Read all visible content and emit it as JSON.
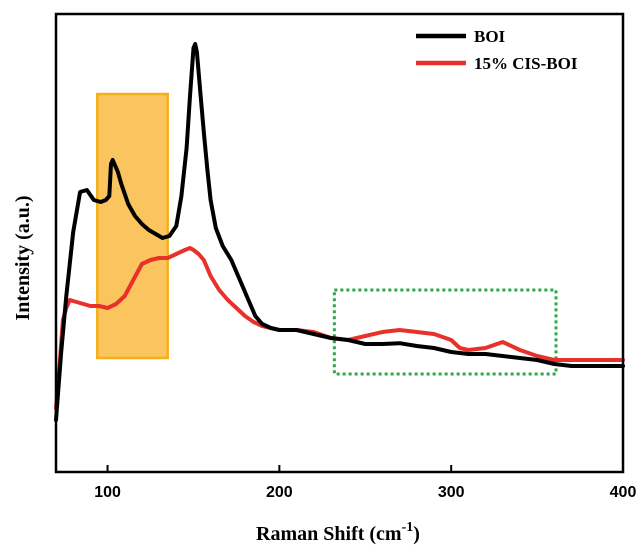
{
  "chart_data": {
    "type": "line",
    "title": "",
    "xlabel_main": "Raman Shift (cm",
    "xlabel_sup": "-1",
    "xlabel_close": ")",
    "ylabel": "Intensity (a.u.)",
    "xlim": [
      70,
      400
    ],
    "ylim": [
      0,
      100
    ],
    "xticks": [
      100,
      200,
      300,
      400
    ],
    "y_tick_labels": false,
    "legend_position": "top-right",
    "series": [
      {
        "name": "BOI",
        "color": "#000000",
        "points": [
          [
            70,
            5
          ],
          [
            73,
            22
          ],
          [
            76,
            36
          ],
          [
            80,
            52
          ],
          [
            84,
            62
          ],
          [
            88,
            62.5
          ],
          [
            92,
            60
          ],
          [
            96,
            59.5
          ],
          [
            99,
            60
          ],
          [
            101,
            61
          ],
          [
            102,
            69
          ],
          [
            103,
            70
          ],
          [
            106,
            67
          ],
          [
            108,
            64
          ],
          [
            112,
            59
          ],
          [
            116,
            56
          ],
          [
            120,
            54
          ],
          [
            124,
            52.5
          ],
          [
            128,
            51.5
          ],
          [
            132,
            50.5
          ],
          [
            136,
            51
          ],
          [
            140,
            53.5
          ],
          [
            143,
            61
          ],
          [
            146,
            73
          ],
          [
            148,
            86
          ],
          [
            150,
            98
          ],
          [
            151,
            99
          ],
          [
            152,
            97
          ],
          [
            154,
            87
          ],
          [
            156,
            77
          ],
          [
            158,
            68
          ],
          [
            160,
            60
          ],
          [
            163,
            53
          ],
          [
            167,
            48.5
          ],
          [
            172,
            45
          ],
          [
            178,
            39
          ],
          [
            182,
            35
          ],
          [
            186,
            31
          ],
          [
            190,
            29
          ],
          [
            195,
            28
          ],
          [
            200,
            27.5
          ],
          [
            210,
            27.5
          ],
          [
            220,
            26.5
          ],
          [
            230,
            25.5
          ],
          [
            240,
            25
          ],
          [
            250,
            24
          ],
          [
            260,
            24
          ],
          [
            270,
            24.2
          ],
          [
            280,
            23.5
          ],
          [
            290,
            23
          ],
          [
            300,
            22
          ],
          [
            310,
            21.5
          ],
          [
            320,
            21.5
          ],
          [
            330,
            21
          ],
          [
            340,
            20.5
          ],
          [
            350,
            20
          ],
          [
            360,
            19
          ],
          [
            370,
            18.5
          ],
          [
            380,
            18.5
          ],
          [
            390,
            18.5
          ],
          [
            400,
            18.5
          ]
        ]
      },
      {
        "name": "15% CIS-BOI",
        "color": "#e8312a",
        "points": [
          [
            70,
            8
          ],
          [
            72,
            18
          ],
          [
            74,
            30
          ],
          [
            76,
            33
          ],
          [
            78,
            35
          ],
          [
            82,
            34.5
          ],
          [
            86,
            34
          ],
          [
            90,
            33.5
          ],
          [
            95,
            33.5
          ],
          [
            100,
            33
          ],
          [
            105,
            34
          ],
          [
            110,
            36
          ],
          [
            115,
            40
          ],
          [
            120,
            44
          ],
          [
            125,
            45
          ],
          [
            130,
            45.5
          ],
          [
            135,
            45.5
          ],
          [
            140,
            46.5
          ],
          [
            145,
            47.5
          ],
          [
            148,
            48
          ],
          [
            150,
            47.5
          ],
          [
            153,
            46.5
          ],
          [
            156,
            45
          ],
          [
            160,
            41
          ],
          [
            165,
            37.5
          ],
          [
            170,
            35
          ],
          [
            175,
            33
          ],
          [
            180,
            31
          ],
          [
            185,
            29.5
          ],
          [
            190,
            28.5
          ],
          [
            195,
            28
          ],
          [
            200,
            27.5
          ],
          [
            210,
            27.5
          ],
          [
            220,
            27
          ],
          [
            230,
            25.5
          ],
          [
            240,
            25
          ],
          [
            250,
            26
          ],
          [
            260,
            27
          ],
          [
            270,
            27.5
          ],
          [
            280,
            27
          ],
          [
            290,
            26.5
          ],
          [
            300,
            25
          ],
          [
            305,
            23
          ],
          [
            310,
            22.5
          ],
          [
            320,
            23
          ],
          [
            330,
            24.5
          ],
          [
            340,
            22.5
          ],
          [
            350,
            21
          ],
          [
            360,
            20
          ],
          [
            370,
            20
          ],
          [
            380,
            20
          ],
          [
            390,
            20
          ],
          [
            400,
            20
          ]
        ]
      }
    ],
    "highlights": [
      {
        "kind": "shaded-band",
        "x0": 94,
        "x1": 135,
        "y0": 20.5,
        "y1": 86.5,
        "fill": "#f9be4e",
        "stroke": "#f4b01a"
      },
      {
        "kind": "dotted-box",
        "x0": 232,
        "x1": 361,
        "y0": 16.5,
        "y1": 37.5,
        "stroke": "#2aa84a"
      }
    ]
  }
}
